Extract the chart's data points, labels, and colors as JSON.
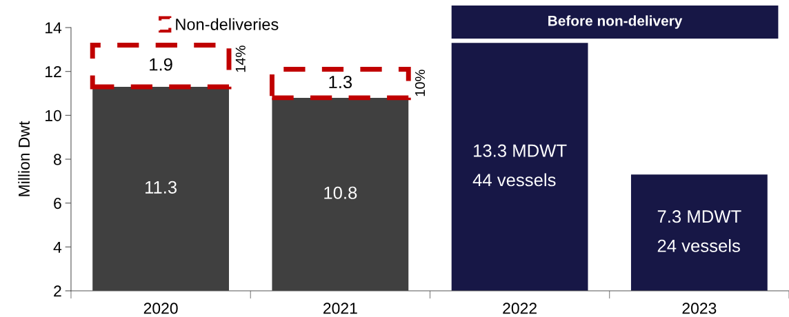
{
  "chart_data": {
    "type": "bar",
    "categories": [
      "2020",
      "2021",
      "2022",
      "2023"
    ],
    "series": [
      {
        "colors": [
          "#404040",
          "#404040",
          "#171746",
          "#171746"
        ],
        "values": [
          11.3,
          10.8,
          13.3,
          7.3
        ],
        "value_labels": [
          "11.3",
          "10.8",
          "13.3 MDWT\n44 vessels",
          "7.3 MDWT\n24 vessels"
        ]
      },
      {
        "name": "Non-deliveries",
        "color": "#c00000",
        "line_style": "dashed",
        "base": [
          11.3,
          10.8,
          null,
          null
        ],
        "values": [
          1.9,
          1.3,
          null,
          null
        ],
        "value_labels": [
          "1.9",
          "1.3",
          null,
          null
        ]
      }
    ],
    "ylabel": "Million Dwt",
    "ylim": [
      2,
      14
    ],
    "yticks": [
      2,
      4,
      6,
      8,
      10,
      12,
      14
    ],
    "legend": "top left",
    "annotations": [
      "14%",
      "10%",
      "Before non-delivery"
    ]
  }
}
